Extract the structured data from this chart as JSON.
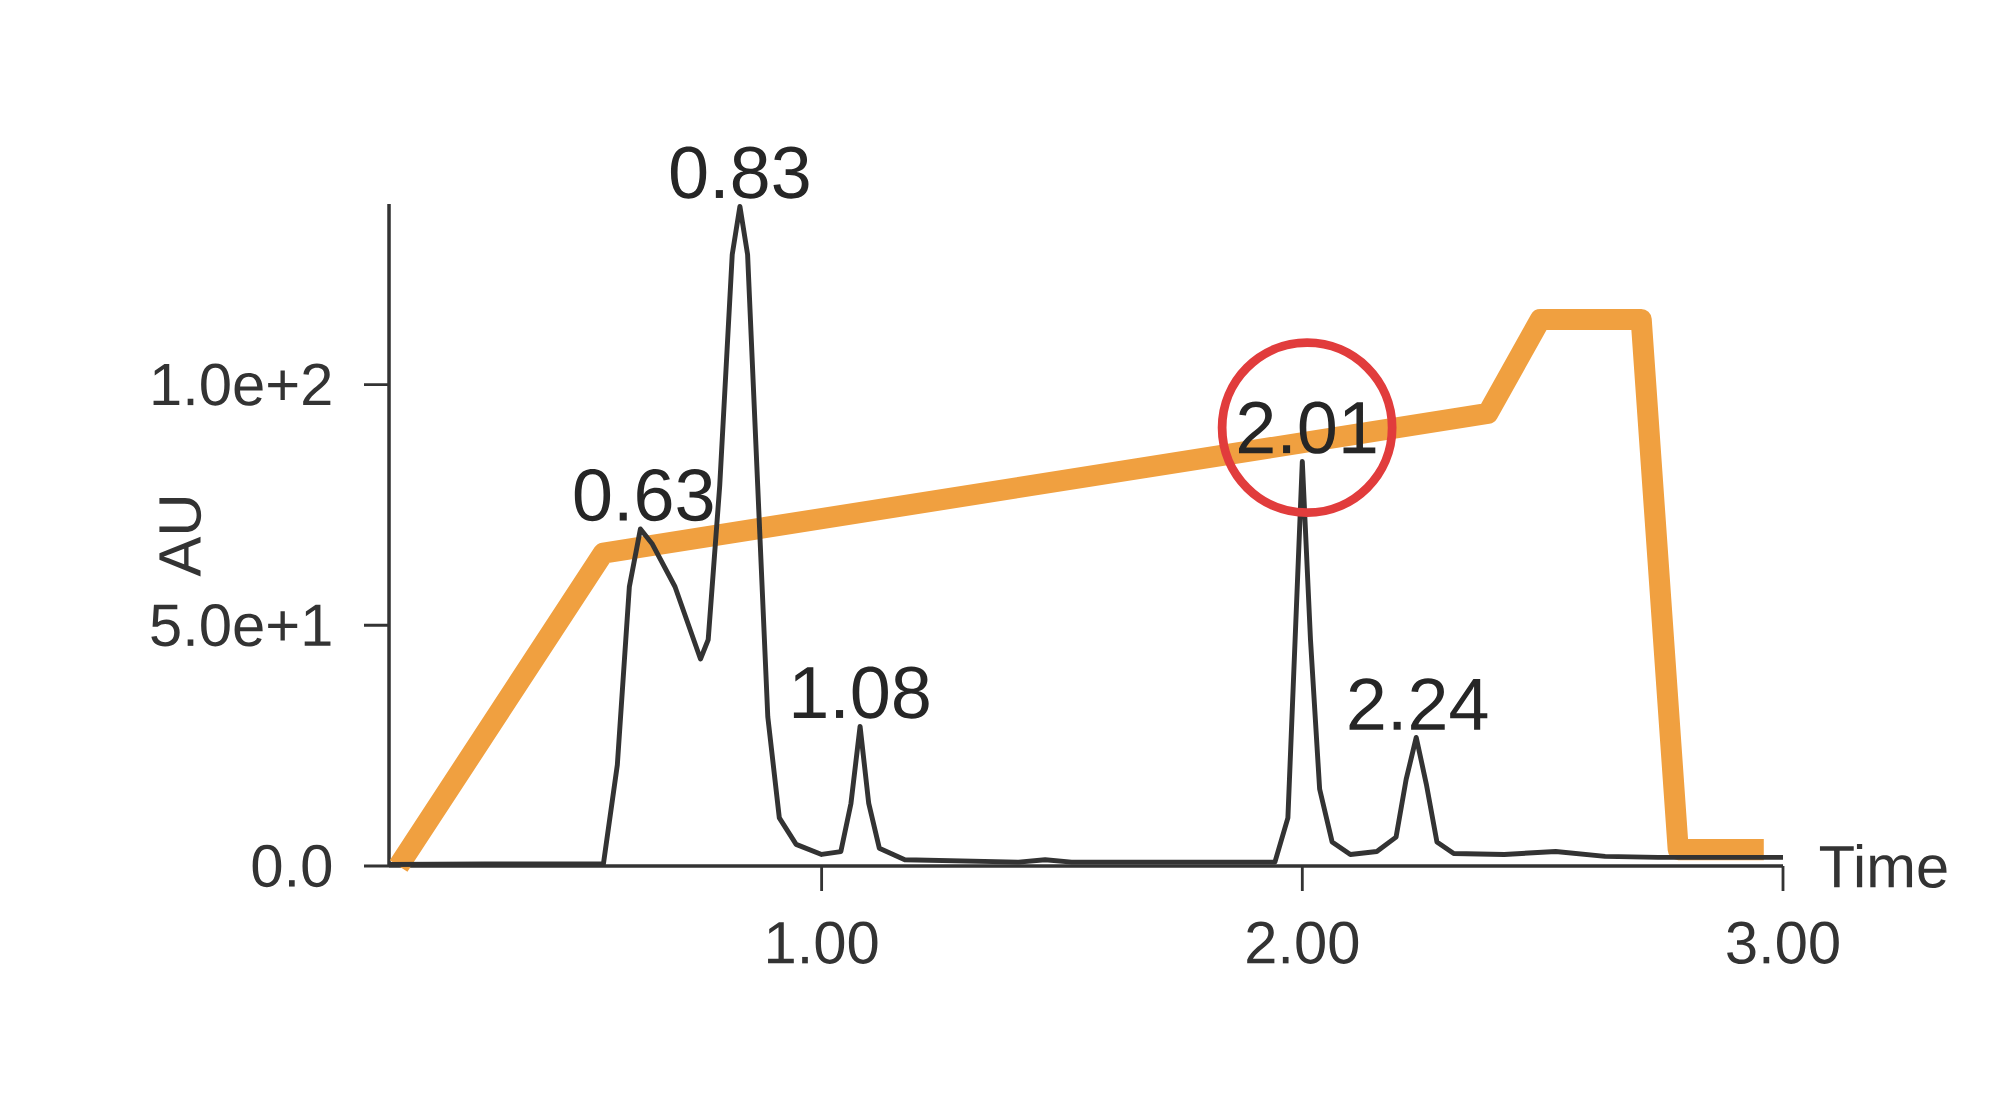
{
  "chart_data": {
    "type": "line",
    "xlabel": "Time",
    "ylabel": "AU",
    "xlim": [
      0.1,
      3.0
    ],
    "ylim": [
      0,
      137.5
    ],
    "xticks": [
      {
        "value": 1.0,
        "label": "1.00"
      },
      {
        "value": 2.0,
        "label": "2.00"
      },
      {
        "value": 3.0,
        "label": "3.00"
      }
    ],
    "yticks": [
      {
        "value": 0,
        "label": "0.0"
      },
      {
        "value": 50,
        "label": "5.0e+1"
      },
      {
        "value": 100,
        "label": "1.0e+2"
      }
    ],
    "grid": false,
    "marker": "none",
    "line_style": "solid",
    "series": [
      {
        "color": "#f0a040",
        "x": [
          0.12,
          0.546,
          2.386,
          2.495,
          2.705,
          2.782,
          2.96
        ],
        "values": [
          0,
          65,
          94,
          113.5,
          113.5,
          3.4,
          3.4
        ]
      },
      {
        "color": "#333333",
        "x": [
          0.1,
          0.3,
          0.546,
          0.575,
          0.6,
          0.623,
          0.647,
          0.695,
          0.748,
          0.764,
          0.788,
          0.814,
          0.83,
          0.846,
          0.867,
          0.888,
          0.912,
          0.947,
          1.0,
          1.04,
          1.061,
          1.08,
          1.098,
          1.12,
          1.173,
          1.41,
          1.465,
          1.52,
          1.943,
          1.97,
          1.985,
          2.0,
          2.017,
          2.036,
          2.062,
          2.1,
          2.155,
          2.195,
          2.216,
          2.237,
          2.258,
          2.28,
          2.315,
          2.42,
          2.527,
          2.63,
          2.74,
          3.0
        ],
        "values": [
          0.3,
          0.4,
          0.4,
          21,
          58,
          70,
          67,
          58,
          43,
          47,
          79,
          127,
          137,
          127,
          79,
          31,
          10,
          4.5,
          2.4,
          3,
          13,
          29,
          13,
          3.7,
          1.3,
          0.8,
          1.3,
          0.8,
          0.8,
          10,
          47,
          84,
          47,
          16,
          5,
          2.4,
          3,
          6,
          18,
          26.7,
          17,
          5,
          2.6,
          2.4,
          3,
          2,
          1.8,
          1.8
        ]
      }
    ],
    "annotations": [
      {
        "text": "0.63",
        "x": 0.63,
        "y": 70
      },
      {
        "text": "0.83",
        "x": 0.83,
        "y": 137
      },
      {
        "text": "1.08",
        "x": 1.08,
        "y": 29
      },
      {
        "text": "2.01",
        "x": 2.01,
        "y": 84
      },
      {
        "text": "2.24",
        "x": 2.24,
        "y": 26.7
      }
    ]
  }
}
